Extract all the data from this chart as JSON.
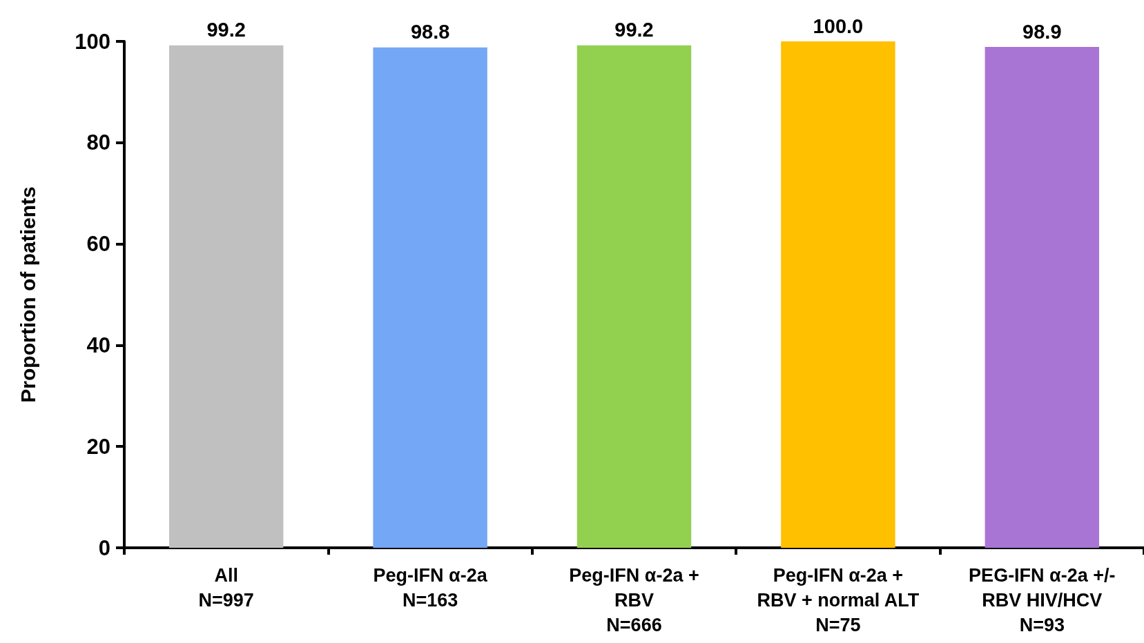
{
  "chart_data": {
    "type": "bar",
    "ylabel": "Proportion of patients",
    "categories": [
      "All\nN=997",
      "Peg-IFN α-2a\nN=163",
      "Peg-IFN α-2a +\nRBV\nN=666",
      "Peg-IFN α-2a +\nRBV + normal ALT\nN=75",
      "PEG-IFN α-2a +/-\nRBV HIV/HCV\nN=93"
    ],
    "values": [
      99.2,
      98.8,
      99.2,
      100.0,
      98.9
    ],
    "value_labels": [
      "99.2",
      "98.8",
      "99.2",
      "100.0",
      "98.9"
    ],
    "colors": [
      "#c0c0c0",
      "#74a7f5",
      "#92d050",
      "#ffc000",
      "#a975d5"
    ],
    "ylim": [
      0,
      100
    ],
    "yticks": [
      0,
      20,
      40,
      60,
      80,
      100
    ],
    "grid": false
  }
}
